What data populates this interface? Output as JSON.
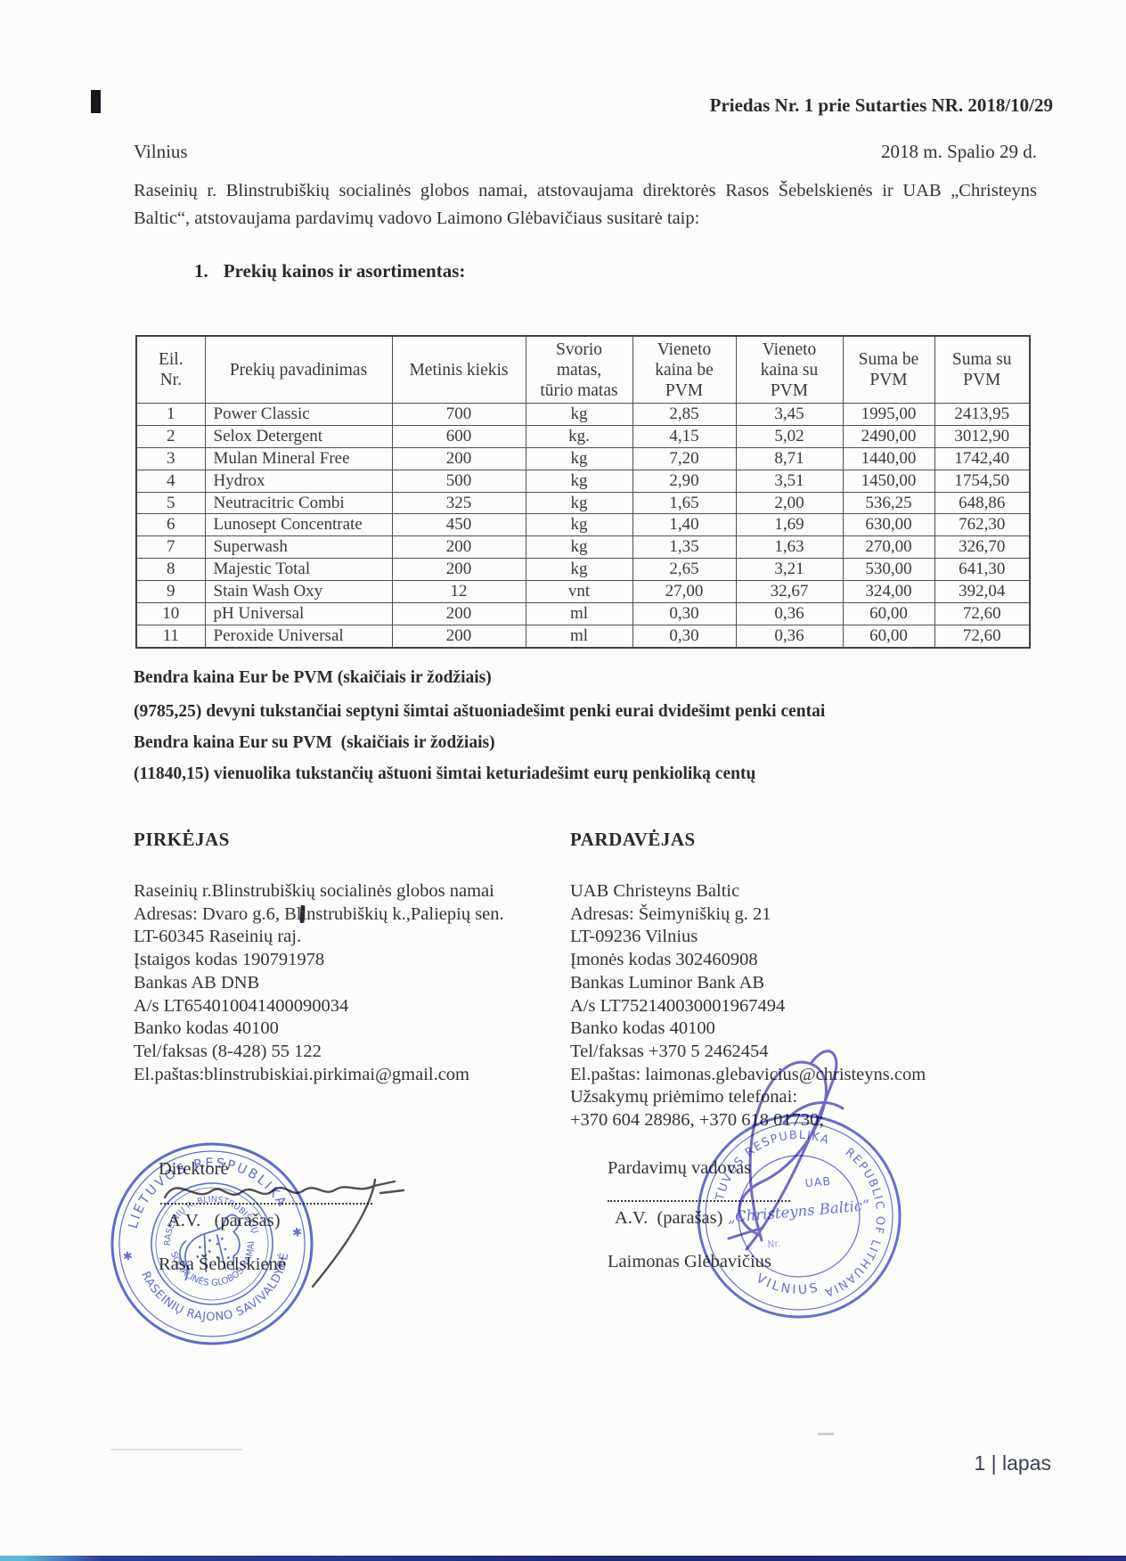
{
  "document": {
    "annex_title": "Priedas Nr. 1 prie Sutarties NR. 2018/10/29",
    "city": "Vilnius",
    "date_line": "2018 m. Spalio 29 d.",
    "intro_paragraph": "Raseinių r. Blinstrubiškių socialinės globos namai, atstovaujama direktorės Rasos Šebelskienės ir UAB „Christeyns Baltic“, atstovaujama pardavimų vadovo Laimono Glėbavičiaus susitarė taip:",
    "section_number": "1.",
    "section_title": "Prekių kainos ir asortimentas:"
  },
  "price_table": {
    "headers": [
      "Eil.\nNr.",
      "Prekių pavadinimas",
      "Metinis kiekis",
      "Svorio\nmatas,\ntūrio matas",
      "Vieneto\nkaina be\nPVM",
      "Vieneto\nkaina su\nPVM",
      "Suma be\nPVM",
      "Suma su\nPVM"
    ],
    "rows": [
      [
        "1",
        "Power Classic",
        "700",
        "kg",
        "2,85",
        "3,45",
        "1995,00",
        "2413,95"
      ],
      [
        "2",
        "Selox Detergent",
        "600",
        "kg.",
        "4,15",
        "5,02",
        "2490,00",
        "3012,90"
      ],
      [
        "3",
        "Mulan Mineral Free",
        "200",
        "kg",
        "7,20",
        "8,71",
        "1440,00",
        "1742,40"
      ],
      [
        "4",
        "Hydrox",
        "500",
        "kg",
        "2,90",
        "3,51",
        "1450,00",
        "1754,50"
      ],
      [
        "5",
        "Neutracitric Combi",
        "325",
        "kg",
        "1,65",
        "2,00",
        "536,25",
        "648,86"
      ],
      [
        "6",
        "Lunosept Concentrate",
        "450",
        "kg",
        "1,40",
        "1,69",
        "630,00",
        "762,30"
      ],
      [
        "7",
        "Superwash",
        "200",
        "kg",
        "1,35",
        "1,63",
        "270,00",
        "326,70"
      ],
      [
        "8",
        "Majestic Total",
        "200",
        "kg",
        "2,65",
        "3,21",
        "530,00",
        "641,30"
      ],
      [
        "9",
        "Stain Wash Oxy",
        "12",
        "vnt",
        "27,00",
        "32,67",
        "324,00",
        "392,04"
      ],
      [
        "10",
        "pH Universal",
        "200",
        "ml",
        "0,30",
        "0,36",
        "60,00",
        "72,60"
      ],
      [
        "11",
        "Peroxide Universal",
        "200",
        "ml",
        "0,30",
        "0,36",
        "60,00",
        "72,60"
      ]
    ]
  },
  "totals": {
    "line1": "Bendra kaina Eur be PVM (skaičiais ir žodžiais)",
    "line2": "(9785,25) devyni tukstančiai septyni šimtai aštuoniadešimt penki eurai dvidešimt penki centai",
    "line3": "Bendra kaina Eur su PVM  (skaičiais ir žodžiais)",
    "line4": "(11840,15) vienuolika tukstančių aštuoni šimtai keturiadešimt eurų penkioliką centų"
  },
  "buyer": {
    "heading": "PIRKĖJAS",
    "lines": [
      "Raseinių r.Blinstrubiškių socialinės globos namai",
      "Adresas: Dvaro g.6, Blinstrubiškių k.,Paliepių sen.",
      "LT-60345 Raseinių raj.",
      "Įstaigos kodas 190791978",
      "Bankas AB DNB",
      "A/s LT654010041400090034",
      "Banko kodas 40100",
      "Tel/faksas (8-428) 55 122",
      "El.paštas:blinstrubiskiai.pirkimai@gmail.com"
    ],
    "role": "Direktorė",
    "stamp_note": "A.V.   (parašas)",
    "name": "Rasa Šebelskienė"
  },
  "seller": {
    "heading": "PARDAVĖJAS",
    "lines": [
      "UAB Christeyns Baltic",
      "Adresas: Šeimyniškių g. 21",
      "LT-09236 Vilnius",
      "Įmonės kodas 302460908",
      "Bankas Luminor Bank AB",
      "A/s LT752140030001967494",
      "Banko kodas 40100",
      "Tel/faksas +370 5 2462454",
      "El.paštas: laimonas.glebavicius@christeyns.com",
      "Užsakymų priėmimo telefonai:",
      "+370 604 28986, +370 618 01730;"
    ],
    "role": "Pardavimų vadovas",
    "stamp_note": "A.V.  (parašas)",
    "name": "Laimonas Glėbavičius"
  },
  "stamps": {
    "buyer_stamp": {
      "outer_top": "LIETUVOS RESPUBLIKA",
      "outer_bottom": "RASEINIŲ RAJONO SAVIVALDYBĖ",
      "inner_top": "RASEINIŲ R. BLINSTRUBIŠKIŲ",
      "inner_bottom": "SOCIALINĖS GLOBOS NAMAI",
      "star_left": "✱",
      "star_right": "✱",
      "color": "#3f53c5"
    },
    "seller_stamp": {
      "ring_left": "LIETUVOS RESPUBLIKA",
      "ring_right": "REPUBLIC OF LITHUANIA",
      "ring_bottom": "VILNIUS",
      "center_line1": "UAB",
      "center_line2": "„Christeyns Baltic“",
      "center_line3": "Nr.",
      "color": "#4a55c8"
    }
  },
  "footer": {
    "page_label": "1 | lapas"
  },
  "colors": {
    "ink": "#34333b",
    "stamp_blue": "#3f53c5",
    "signature_blue": "#5a52c0",
    "bottom_bar": "#1d2b6e"
  }
}
